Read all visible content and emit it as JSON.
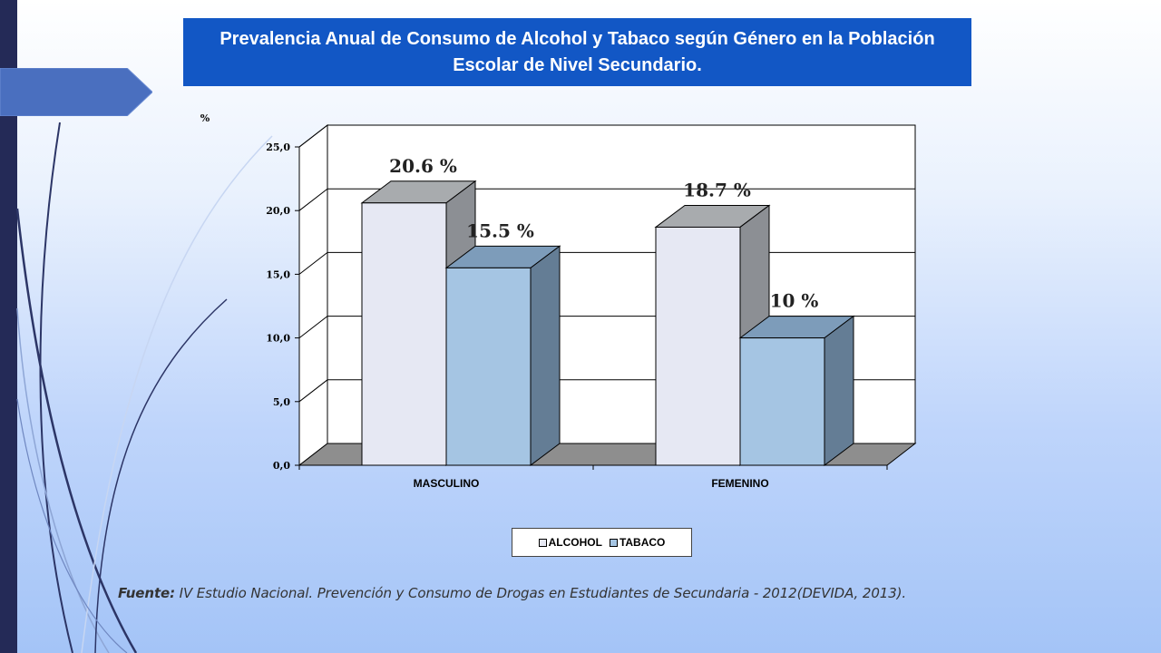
{
  "slide": {
    "title": "Prevalencia Anual de Consumo de Alcohol y Tabaco según Género en la Población Escolar  de Nivel Secundario.",
    "source_label": "Fuente:",
    "source_text": " IV Estudio Nacional. Prevención y Consumo de Drogas en Estudiantes de Secundaria - 2012(DEVIDA, 2013)."
  },
  "colors": {
    "title_bg": "#1257c5",
    "alcohol_front": "#e6e8f3",
    "alcohol_top": "#a8abae",
    "alcohol_side": "#8c8f94",
    "tabaco_front": "#a5c5e3",
    "tabaco_top": "#7d9cba",
    "tabaco_side": "#647d95",
    "floor": "#8e8e8e"
  },
  "chart_data": {
    "type": "bar",
    "unit_label": "%",
    "categories": [
      "MASCULINO",
      "FEMENINO"
    ],
    "series": [
      {
        "name": "ALCOHOL",
        "values": [
          20.6,
          18.7
        ],
        "labels": [
          "20.6 %",
          "18.7 %"
        ]
      },
      {
        "name": "TABACO",
        "values": [
          15.5,
          10.0
        ],
        "labels": [
          "15.5 %",
          "10 %"
        ]
      }
    ],
    "ylim": [
      0,
      25
    ],
    "yticks": [
      "0,0",
      "5,0",
      "10,0",
      "15,0",
      "20,0",
      "25,0"
    ],
    "grid": true,
    "legend": "bottom",
    "style": "3d-column"
  }
}
